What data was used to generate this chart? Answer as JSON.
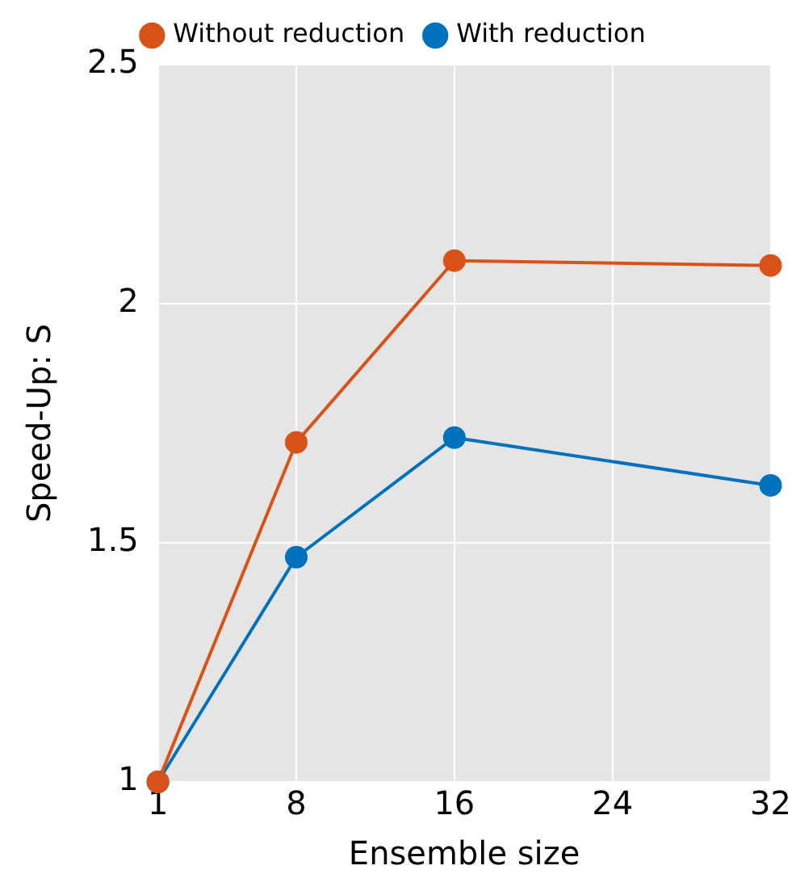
{
  "chart_data": {
    "type": "line",
    "xlabel": "Ensemble size",
    "ylabel": "Speed-Up: S",
    "x": [
      1,
      8,
      16,
      32
    ],
    "series": [
      {
        "name": "With reduction",
        "color": "#0072bd",
        "values": [
          1,
          1.47,
          1.72,
          1.62
        ]
      },
      {
        "name": "Without reduction",
        "color": "#d95319",
        "values": [
          1,
          1.71,
          2.09,
          2.08
        ]
      }
    ],
    "xlim": [
      1,
      32
    ],
    "xticks": [
      1,
      8,
      16,
      24,
      32
    ],
    "ylim": [
      1,
      2.5
    ],
    "yticks": [
      1,
      1.5,
      2,
      2.5
    ],
    "grid": true,
    "legend": "top",
    "marker": "circle",
    "line_style": "solid"
  }
}
